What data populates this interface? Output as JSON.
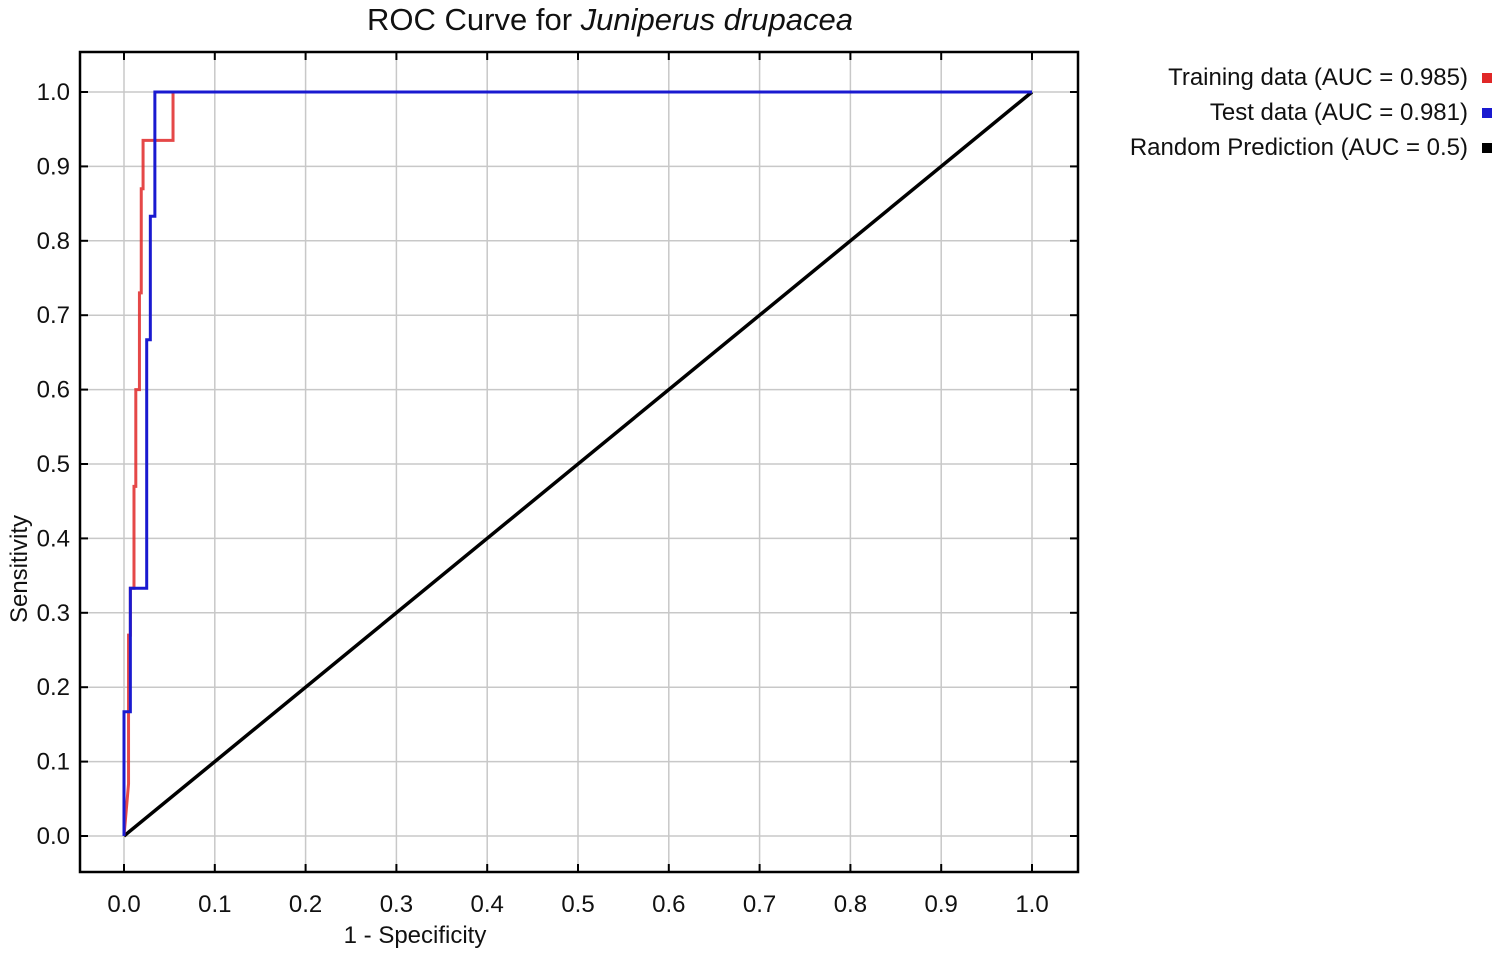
{
  "chart_data": {
    "type": "line",
    "title_prefix": "ROC Curve for ",
    "title_species": "Juniperus drupacea",
    "xlabel": "1 - Specificity",
    "ylabel": "Sensitivity",
    "xlim": [
      0,
      1
    ],
    "ylim": [
      0,
      1
    ],
    "xticks": [
      "0.0",
      "0.1",
      "0.2",
      "0.3",
      "0.4",
      "0.5",
      "0.6",
      "0.7",
      "0.8",
      "0.9",
      "1.0"
    ],
    "yticks": [
      "0.0",
      "0.1",
      "0.2",
      "0.3",
      "0.4",
      "0.5",
      "0.6",
      "0.7",
      "0.8",
      "0.9",
      "1.0"
    ],
    "grid": true,
    "legend_position": "top-right outside",
    "series": [
      {
        "name": "Training data (AUC = 0.985)",
        "color": "#e02828",
        "x": [
          0,
          0.005,
          0.005,
          0.007,
          0.007,
          0.011,
          0.011,
          0.013,
          0.013,
          0.017,
          0.017,
          0.019,
          0.019,
          0.021,
          0.021,
          0.054,
          0.054,
          1
        ],
        "y": [
          0,
          0.07,
          0.27,
          0.27,
          0.333,
          0.333,
          0.47,
          0.47,
          0.6,
          0.6,
          0.73,
          0.73,
          0.87,
          0.87,
          0.935,
          0.935,
          1,
          1
        ]
      },
      {
        "name": "Test data (AUC = 0.981)",
        "color": "#1a1ad0",
        "x": [
          0,
          0,
          0.007,
          0.007,
          0.025,
          0.025,
          0.029,
          0.029,
          0.034,
          0.034,
          1
        ],
        "y": [
          0,
          0.167,
          0.167,
          0.333,
          0.333,
          0.667,
          0.667,
          0.833,
          0.833,
          1,
          1
        ]
      },
      {
        "name": "Random Prediction (AUC = 0.5)",
        "color": "#000000",
        "x": [
          0,
          1
        ],
        "y": [
          0,
          1
        ]
      }
    ]
  }
}
